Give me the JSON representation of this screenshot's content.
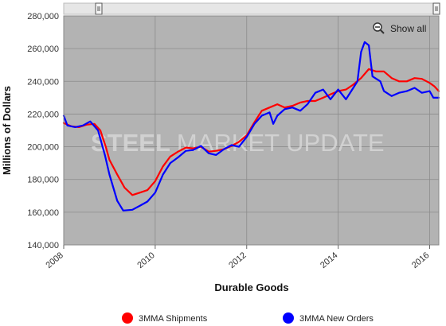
{
  "chart_data": {
    "type": "line",
    "title": "",
    "xlabel": "Durable Goods",
    "ylabel": "Millions of Dollars",
    "xlim": [
      2008.0,
      2016.2
    ],
    "ylim": [
      140000,
      280000
    ],
    "x_ticks": [
      2008,
      2010,
      2012,
      2014,
      2016
    ],
    "x_tick_labels": [
      "2008",
      "2010",
      "2012",
      "2014",
      "2016"
    ],
    "y_ticks": [
      140000,
      160000,
      180000,
      200000,
      220000,
      240000,
      260000,
      280000
    ],
    "y_tick_labels": [
      "140,000",
      "160,000",
      "180,000",
      "200,000",
      "220,000",
      "240,000",
      "260,000",
      "280,000"
    ],
    "grid": true,
    "legend_position": "bottom",
    "series": [
      {
        "name": "3MMA Shipments",
        "color": "#ff0000",
        "points": [
          [
            2008.0,
            214500
          ],
          [
            2008.17,
            212500
          ],
          [
            2008.33,
            212000
          ],
          [
            2008.5,
            213500
          ],
          [
            2008.67,
            214000
          ],
          [
            2008.8,
            210000
          ],
          [
            2008.92,
            200000
          ],
          [
            2009.0,
            192000
          ],
          [
            2009.17,
            183000
          ],
          [
            2009.33,
            175000
          ],
          [
            2009.5,
            170500
          ],
          [
            2009.67,
            172000
          ],
          [
            2009.83,
            173500
          ],
          [
            2010.0,
            179000
          ],
          [
            2010.17,
            188000
          ],
          [
            2010.33,
            194000
          ],
          [
            2010.5,
            197000
          ],
          [
            2010.67,
            199500
          ],
          [
            2010.83,
            199000
          ],
          [
            2011.0,
            200000
          ],
          [
            2011.17,
            197000
          ],
          [
            2011.33,
            197500
          ],
          [
            2011.5,
            198500
          ],
          [
            2011.67,
            200500
          ],
          [
            2011.83,
            203000
          ],
          [
            2012.0,
            207000
          ],
          [
            2012.17,
            215000
          ],
          [
            2012.33,
            222000
          ],
          [
            2012.5,
            224000
          ],
          [
            2012.67,
            226000
          ],
          [
            2012.83,
            224000
          ],
          [
            2013.0,
            225000
          ],
          [
            2013.17,
            227000
          ],
          [
            2013.33,
            228000
          ],
          [
            2013.5,
            228000
          ],
          [
            2013.67,
            230000
          ],
          [
            2013.83,
            232000
          ],
          [
            2014.0,
            234000
          ],
          [
            2014.17,
            235000
          ],
          [
            2014.33,
            238000
          ],
          [
            2014.5,
            242000
          ],
          [
            2014.67,
            247500
          ],
          [
            2014.83,
            246000
          ],
          [
            2015.0,
            246000
          ],
          [
            2015.17,
            242000
          ],
          [
            2015.33,
            240000
          ],
          [
            2015.5,
            240000
          ],
          [
            2015.67,
            242000
          ],
          [
            2015.83,
            241500
          ],
          [
            2016.0,
            239000
          ],
          [
            2016.1,
            237000
          ],
          [
            2016.2,
            234000
          ]
        ]
      },
      {
        "name": "3MMA New Orders",
        "color": "#0000ff",
        "points": [
          [
            2008.0,
            219000
          ],
          [
            2008.08,
            213000
          ],
          [
            2008.25,
            212000
          ],
          [
            2008.42,
            213000
          ],
          [
            2008.58,
            215500
          ],
          [
            2008.75,
            210000
          ],
          [
            2008.9,
            195000
          ],
          [
            2009.0,
            183000
          ],
          [
            2009.17,
            167000
          ],
          [
            2009.3,
            161000
          ],
          [
            2009.5,
            161500
          ],
          [
            2009.67,
            164000
          ],
          [
            2009.83,
            166500
          ],
          [
            2010.0,
            172000
          ],
          [
            2010.17,
            183000
          ],
          [
            2010.33,
            190000
          ],
          [
            2010.5,
            193500
          ],
          [
            2010.67,
            197500
          ],
          [
            2010.83,
            198000
          ],
          [
            2011.0,
            200500
          ],
          [
            2011.17,
            196000
          ],
          [
            2011.33,
            195000
          ],
          [
            2011.5,
            198500
          ],
          [
            2011.67,
            201000
          ],
          [
            2011.83,
            200000
          ],
          [
            2012.0,
            206000
          ],
          [
            2012.17,
            214000
          ],
          [
            2012.33,
            219000
          ],
          [
            2012.5,
            221000
          ],
          [
            2012.58,
            214000
          ],
          [
            2012.67,
            219000
          ],
          [
            2012.83,
            223000
          ],
          [
            2013.0,
            224000
          ],
          [
            2013.17,
            222000
          ],
          [
            2013.33,
            226000
          ],
          [
            2013.5,
            233000
          ],
          [
            2013.67,
            235000
          ],
          [
            2013.83,
            229000
          ],
          [
            2014.0,
            235000
          ],
          [
            2014.17,
            229000
          ],
          [
            2014.33,
            236000
          ],
          [
            2014.42,
            240000
          ],
          [
            2014.5,
            258000
          ],
          [
            2014.58,
            264000
          ],
          [
            2014.67,
            262000
          ],
          [
            2014.75,
            243000
          ],
          [
            2014.92,
            240000
          ],
          [
            2015.0,
            234000
          ],
          [
            2015.17,
            231000
          ],
          [
            2015.33,
            233000
          ],
          [
            2015.5,
            234000
          ],
          [
            2015.67,
            236000
          ],
          [
            2015.83,
            233000
          ],
          [
            2016.0,
            234000
          ],
          [
            2016.08,
            230000
          ],
          [
            2016.2,
            230000
          ]
        ]
      }
    ]
  },
  "controls": {
    "show_all_label": "Show all",
    "zoom_icon": "magnifier-minus-icon",
    "range_handle_icon": "scroll-handle-icon"
  },
  "watermark": {
    "bold_text": "STEEL",
    "light_text": "MARKET UPDATE"
  }
}
